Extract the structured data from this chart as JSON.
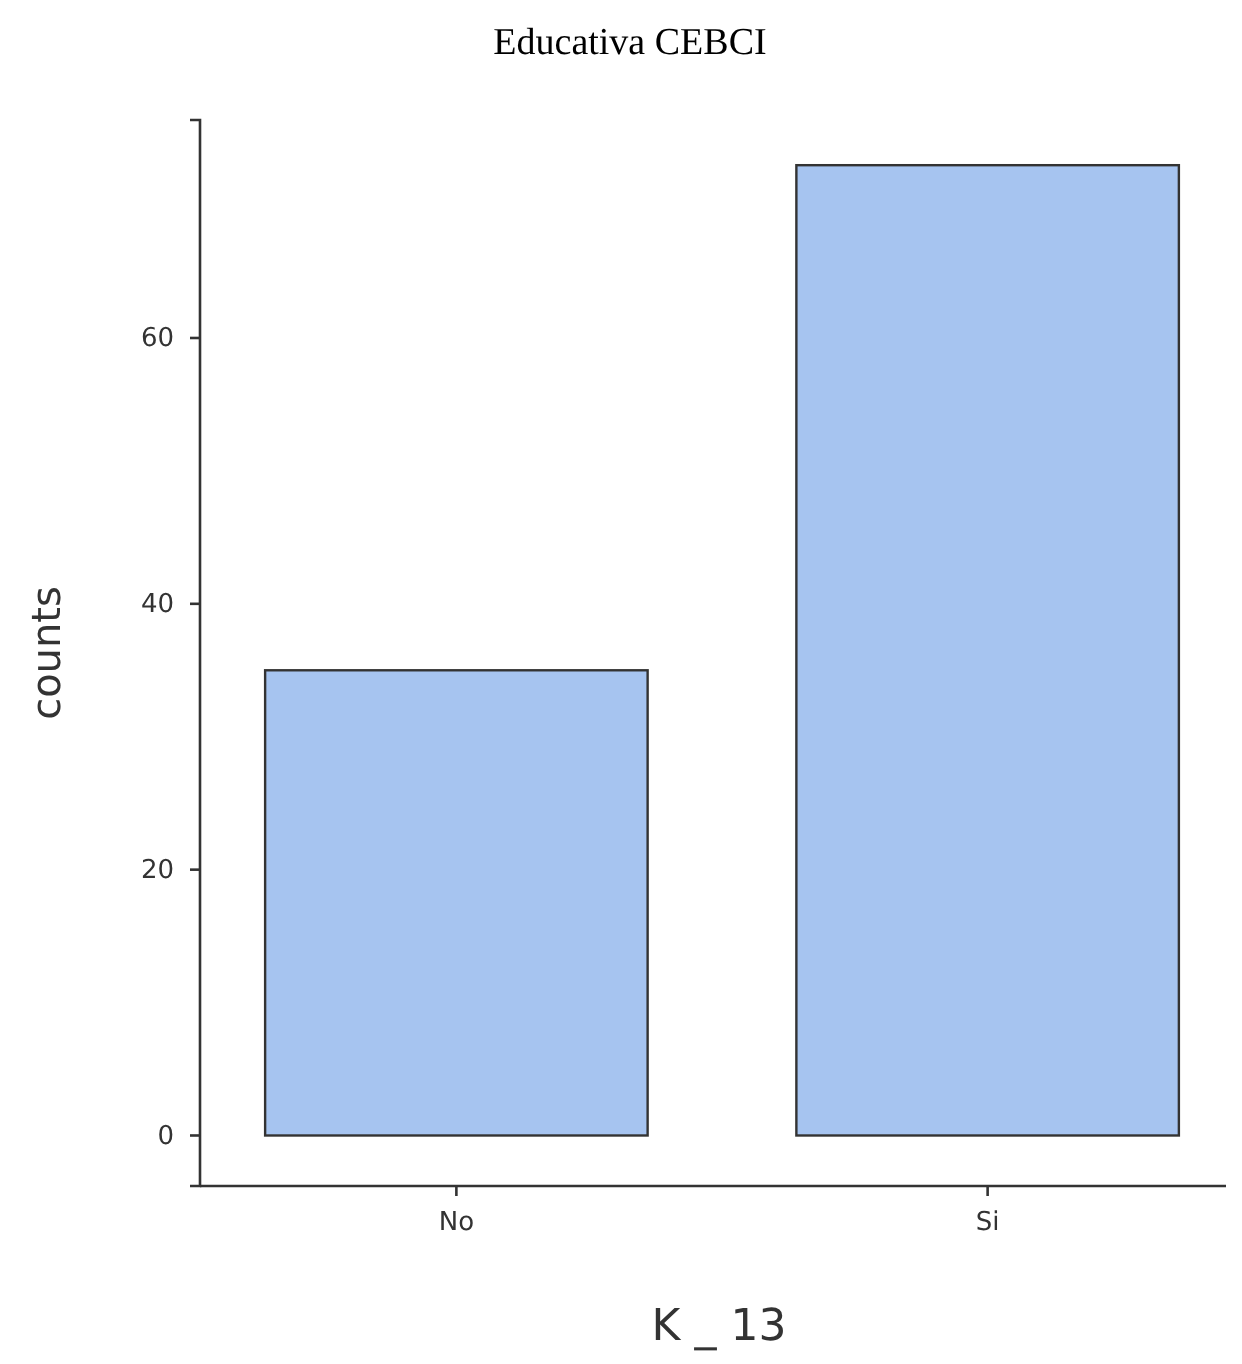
{
  "chart_data": {
    "type": "bar",
    "title": "Educativa CEBCI",
    "xlabel": "K _ 13",
    "ylabel": "counts",
    "categories": [
      "No",
      "Si"
    ],
    "series": [
      {
        "color": "#a6c4f0",
        "values": [
          35,
          73
        ]
      }
    ],
    "ylim": [
      -3.8,
      76.4
    ],
    "yticks": [
      0,
      20,
      40,
      60
    ],
    "grid": false
  }
}
